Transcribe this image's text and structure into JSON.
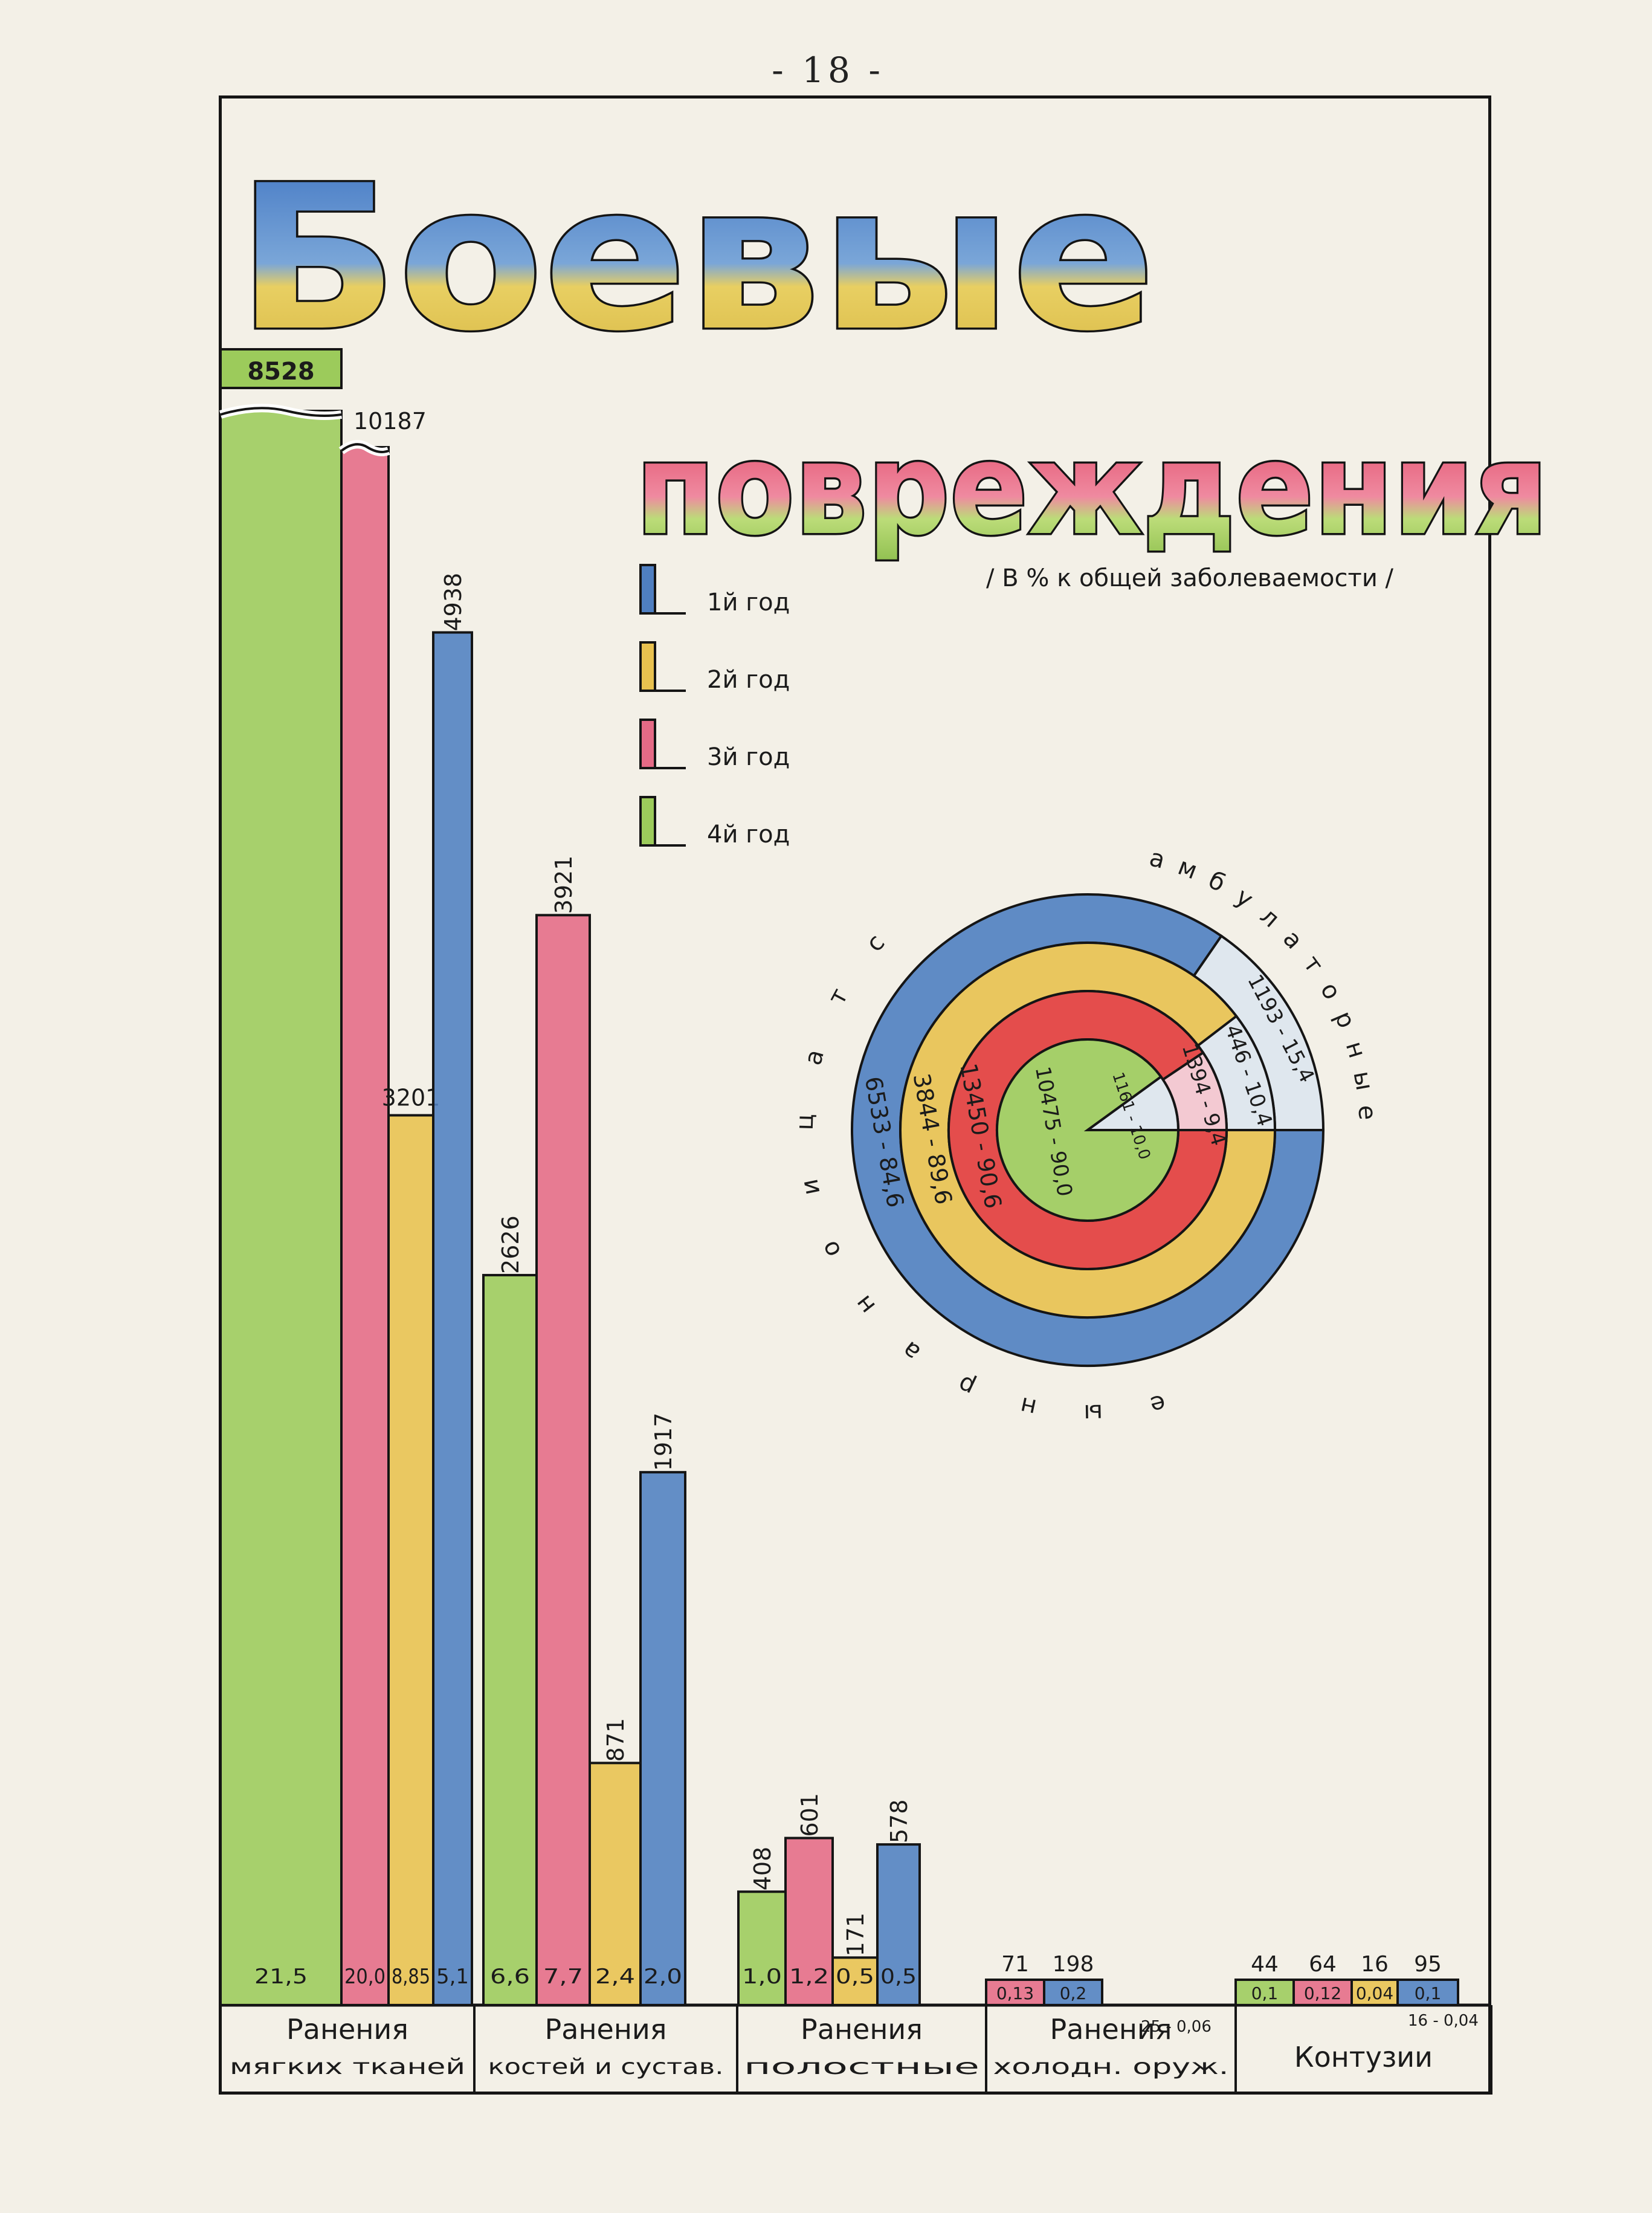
{
  "page_number": "- 18 -",
  "title": {
    "line1": "Боевые",
    "line2": "повреждения",
    "subtitle": "/ В % к общей заболеваемости /"
  },
  "legend": [
    {
      "label": "1й год",
      "color": "#4f7fc1"
    },
    {
      "label": "2й год",
      "color": "#e8c14f"
    },
    {
      "label": "3й год",
      "color": "#e56a86"
    },
    {
      "label": "4й год",
      "color": "#9ccb5b"
    }
  ],
  "colors": {
    "blue": "#4f7fc1",
    "yellow": "#e8c14f",
    "pink": "#e56a86",
    "green": "#9ccb5b",
    "red": "#e23b3b",
    "light": "#dfe7ee",
    "lightpink": "#f3c9d2",
    "ink": "#151515"
  },
  "chart_data": [
    {
      "type": "bar",
      "categories": [
        [
          "Ранения",
          "мягких тканей"
        ],
        [
          "Ранения",
          "костей и сустав."
        ],
        [
          "Ранения",
          "полостные"
        ],
        [
          "Ранения",
          "холодн. оруж."
        ],
        [
          "Контузии",
          ""
        ]
      ],
      "series_order_in_group": [
        "4й год",
        "3й год",
        "2й год",
        "1й год"
      ],
      "series": [
        {
          "name": "4й год",
          "counts": [
            "8528",
            "2626",
            "408",
            "",
            "44"
          ],
          "percent": [
            "21,5",
            "6,6",
            "1,0",
            "",
            "0,1"
          ]
        },
        {
          "name": "3й год",
          "counts": [
            "10187",
            "3921",
            "601",
            "71",
            "64"
          ],
          "percent": [
            "20,0",
            "7,7",
            "1,2",
            "0,13",
            "0,12"
          ]
        },
        {
          "name": "2й год",
          "counts": [
            "3201",
            "871",
            "171",
            "",
            "16"
          ],
          "percent": [
            "8,85",
            "2,4",
            "0,5",
            "",
            "0,04"
          ]
        },
        {
          "name": "1й год",
          "counts": [
            "4938",
            "1917",
            "578",
            "198",
            "95"
          ],
          "percent": [
            "5,1",
            "2,0",
            "0,5",
            "0,2",
            "0,1"
          ]
        }
      ],
      "annotations": [
        {
          "text": "25 - 0,06",
          "category": "Ранения холодн. оруж."
        }
      ]
    },
    {
      "type": "pie",
      "ring_order": [
        "1й год",
        "2й год",
        "3й год",
        "4й год"
      ],
      "slices": [
        "стационарные",
        "амбулаторные"
      ],
      "rings": [
        {
          "name": "1й год",
          "values": [
            84.6,
            15.4
          ],
          "labels": [
            "6533 - 84,6",
            "1193 - 15,4"
          ]
        },
        {
          "name": "2й год",
          "values": [
            89.6,
            10.4
          ],
          "labels": [
            "3844 - 89,6",
            "446 - 10,4"
          ]
        },
        {
          "name": "3й год",
          "values": [
            90.6,
            9.4
          ],
          "labels": [
            "13450 - 90,6",
            "1394 - 9,4"
          ]
        },
        {
          "name": "4й год",
          "values": [
            90.0,
            10.0
          ],
          "labels": [
            "10475 - 90,0",
            "1161 - 10,0"
          ]
        }
      ],
      "arc_labels": {
        "left": "стационарные",
        "right": "амбулаторные"
      }
    }
  ]
}
